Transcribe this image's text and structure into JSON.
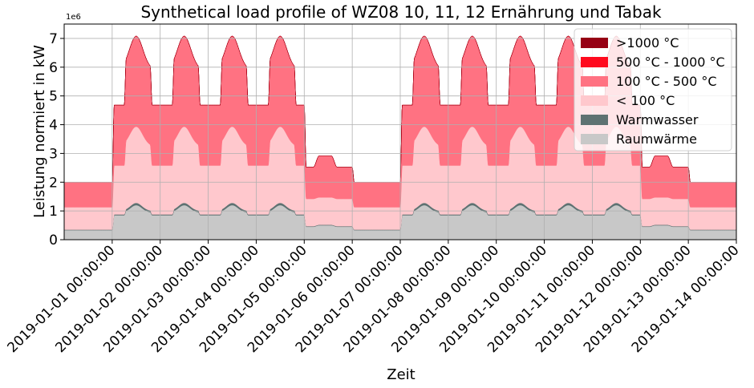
{
  "chart_data": {
    "type": "area",
    "stacked": true,
    "title": "Synthetical load profile of WZ08 10, 11, 12 Ernährung und Tabak",
    "xlabel": "Zeit",
    "ylabel": "Leistung normiert in kW",
    "y_multiplier_label": "1e6",
    "ylim": [
      0,
      7.5
    ],
    "yticks": [
      0,
      1,
      2,
      3,
      4,
      5,
      6,
      7
    ],
    "xlim_days": [
      0,
      14
    ],
    "grid": true,
    "legend_position": "top-right",
    "xticks": [
      {
        "day": 1,
        "label": "2019-01-01 00:00:00"
      },
      {
        "day": 2,
        "label": "2019-01-02 00:00:00"
      },
      {
        "day": 3,
        "label": "2019-01-03 00:00:00"
      },
      {
        "day": 4,
        "label": "2019-01-04 00:00:00"
      },
      {
        "day": 5,
        "label": "2019-01-05 00:00:00"
      },
      {
        "day": 6,
        "label": "2019-01-06 00:00:00"
      },
      {
        "day": 7,
        "label": "2019-01-07 00:00:00"
      },
      {
        "day": 8,
        "label": "2019-01-08 00:00:00"
      },
      {
        "day": 9,
        "label": "2019-01-09 00:00:00"
      },
      {
        "day": 10,
        "label": "2019-01-10 00:00:00"
      },
      {
        "day": 11,
        "label": "2019-01-11 00:00:00"
      },
      {
        "day": 12,
        "label": "2019-01-12 00:00:00"
      },
      {
        "day": 13,
        "label": "2019-01-13 00:00:00"
      },
      {
        "day": 14,
        "label": "2019-01-14 00:00:00"
      }
    ],
    "series": [
      {
        "name": "Raumwärme",
        "color": "#c8c8c8",
        "day_profile": {
          "weekday": {
            "night": 0.85,
            "mid": 0.95,
            "peak": 1.2
          },
          "saturday": {
            "base": 0.45,
            "peak": 0.5
          },
          "sunday": {
            "base": 0.33
          }
        }
      },
      {
        "name": "Warmwasser",
        "color": "#5e7272",
        "day_profile": {
          "weekday": {
            "night": 0.03,
            "peak": 0.08
          },
          "saturday": {
            "base": 0.02
          },
          "sunday": {
            "base": 0.02
          }
        }
      },
      {
        "name": "< 100 °C",
        "color": "#ffc8cd",
        "day_profile": {
          "weekday": {
            "night": 1.7,
            "peak": 2.65
          },
          "saturday": {
            "base": 0.95
          },
          "sunday": {
            "base": 0.78
          }
        }
      },
      {
        "name": "100 °C - 500 °C",
        "color": "#ff7282",
        "day_profile": {
          "weekday": {
            "night": 2.1,
            "peak": 3.15
          },
          "saturday": {
            "base": 1.1,
            "peak": 1.45
          },
          "sunday": {
            "base": 0.87
          }
        }
      },
      {
        "name": "500 °C - 1000 °C",
        "color": "#ff0a1e",
        "day_profile": {
          "weekday": {
            "night": 0.0,
            "peak": 0.0
          },
          "saturday": {
            "base": 0.0
          },
          "sunday": {
            "base": 0.0
          }
        }
      },
      {
        "name": ">1000 °C",
        "color": "#960014",
        "day_profile": {
          "weekday": {
            "night": 0.0,
            "peak": 0.0
          },
          "saturday": {
            "base": 0.0
          },
          "sunday": {
            "base": 0.0
          }
        }
      }
    ],
    "day_types": [
      "sunday",
      "weekday",
      "weekday",
      "weekday",
      "weekday",
      "saturday",
      "sunday",
      "weekday",
      "weekday",
      "weekday",
      "weekday",
      "weekday",
      "saturday",
      "sunday"
    ],
    "legend_order": [
      ">1000 °C",
      "500 °C - 1000 °C",
      "100 °C - 500 °C",
      "< 100 °C",
      "Warmwasser",
      "Raumwärme"
    ]
  }
}
